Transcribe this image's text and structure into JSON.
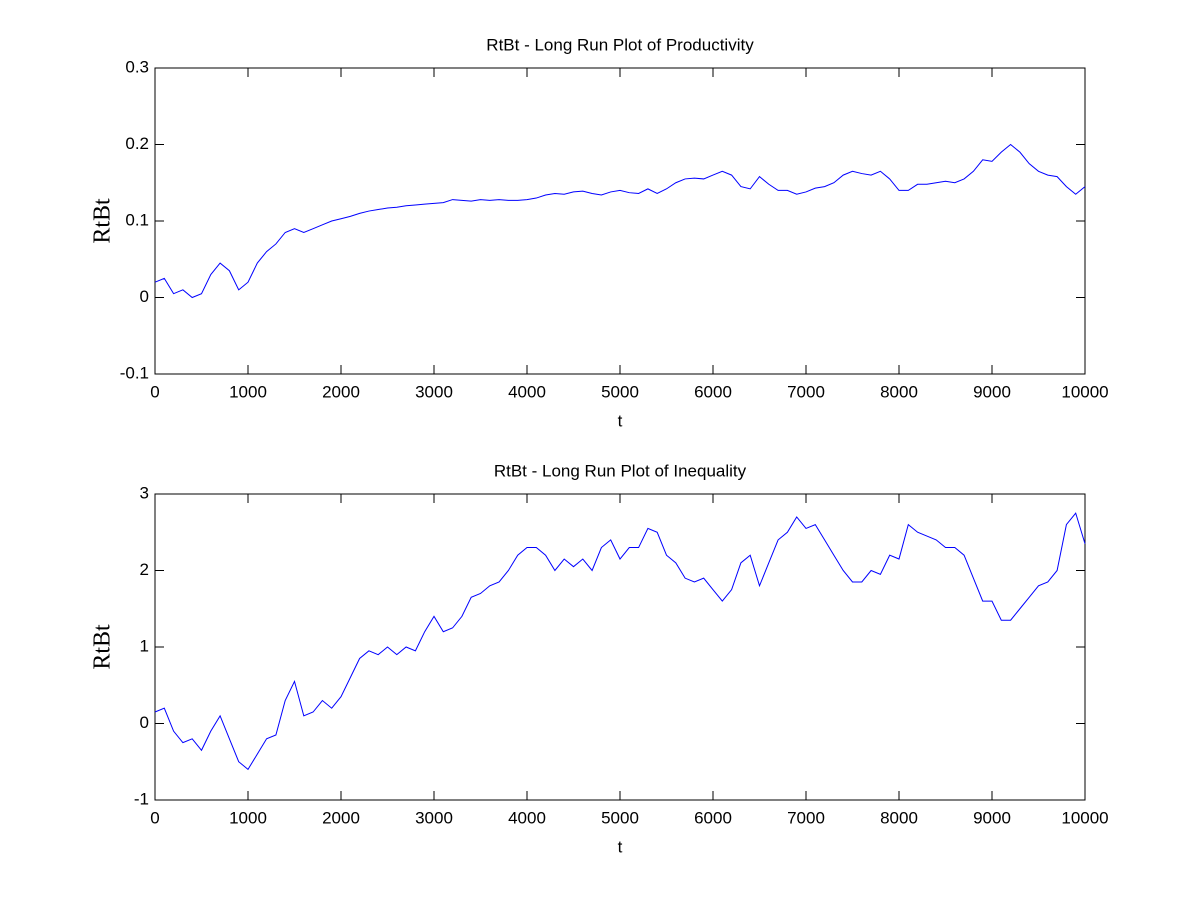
{
  "chart_data": [
    {
      "type": "line",
      "title": "RtBt - Long Run Plot of Productivity",
      "xlabel": "t",
      "ylabel": "RtBt",
      "color": "#0000ff",
      "xlim": [
        0,
        10000
      ],
      "xticks": [
        0,
        1000,
        2000,
        3000,
        4000,
        5000,
        6000,
        7000,
        8000,
        9000,
        10000
      ],
      "ylim": [
        -0.1,
        0.3
      ],
      "yticks": [
        -0.1,
        0,
        0.1,
        0.2,
        0.3
      ],
      "x": [
        0,
        100,
        200,
        300,
        400,
        500,
        600,
        700,
        800,
        900,
        1000,
        1100,
        1200,
        1300,
        1400,
        1500,
        1600,
        1700,
        1800,
        1900,
        2000,
        2100,
        2200,
        2300,
        2400,
        2500,
        2600,
        2700,
        2800,
        2900,
        3000,
        3100,
        3200,
        3300,
        3400,
        3500,
        3600,
        3700,
        3800,
        3900,
        4000,
        4100,
        4200,
        4300,
        4400,
        4500,
        4600,
        4700,
        4800,
        4900,
        5000,
        5100,
        5200,
        5300,
        5400,
        5500,
        5600,
        5700,
        5800,
        5900,
        6000,
        6100,
        6200,
        6300,
        6400,
        6500,
        6600,
        6700,
        6800,
        6900,
        7000,
        7100,
        7200,
        7300,
        7400,
        7500,
        7600,
        7700,
        7800,
        7900,
        8000,
        8100,
        8200,
        8300,
        8400,
        8500,
        8600,
        8700,
        8800,
        8900,
        9000,
        9100,
        9200,
        9300,
        9400,
        9500,
        9600,
        9700,
        9800,
        9900,
        10000
      ],
      "values": [
        0.02,
        0.025,
        0.005,
        0.01,
        0.0,
        0.005,
        0.03,
        0.045,
        0.035,
        0.01,
        0.02,
        0.045,
        0.06,
        0.07,
        0.085,
        0.09,
        0.085,
        0.09,
        0.095,
        0.1,
        0.103,
        0.106,
        0.11,
        0.113,
        0.115,
        0.117,
        0.118,
        0.12,
        0.121,
        0.122,
        0.123,
        0.124,
        0.128,
        0.127,
        0.126,
        0.128,
        0.127,
        0.128,
        0.127,
        0.127,
        0.128,
        0.13,
        0.134,
        0.136,
        0.135,
        0.138,
        0.139,
        0.136,
        0.134,
        0.138,
        0.14,
        0.137,
        0.136,
        0.142,
        0.136,
        0.142,
        0.15,
        0.155,
        0.156,
        0.155,
        0.16,
        0.165,
        0.16,
        0.145,
        0.142,
        0.158,
        0.148,
        0.14,
        0.14,
        0.135,
        0.138,
        0.143,
        0.145,
        0.15,
        0.16,
        0.165,
        0.162,
        0.16,
        0.165,
        0.155,
        0.14,
        0.14,
        0.148,
        0.148,
        0.15,
        0.152,
        0.15,
        0.155,
        0.165,
        0.18,
        0.178,
        0.19,
        0.2,
        0.19,
        0.175,
        0.165,
        0.16,
        0.158,
        0.145,
        0.135,
        0.145
      ]
    },
    {
      "type": "line",
      "title": "RtBt - Long Run Plot of Inequality",
      "xlabel": "t",
      "ylabel": "RtBt",
      "color": "#0000ff",
      "xlim": [
        0,
        10000
      ],
      "xticks": [
        0,
        1000,
        2000,
        3000,
        4000,
        5000,
        6000,
        7000,
        8000,
        9000,
        10000
      ],
      "ylim": [
        -1,
        3
      ],
      "yticks": [
        -1,
        0,
        1,
        2,
        3
      ],
      "x": [
        0,
        100,
        200,
        300,
        400,
        500,
        600,
        700,
        800,
        900,
        1000,
        1100,
        1200,
        1300,
        1400,
        1500,
        1600,
        1700,
        1800,
        1900,
        2000,
        2100,
        2200,
        2300,
        2400,
        2500,
        2600,
        2700,
        2800,
        2900,
        3000,
        3100,
        3200,
        3300,
        3400,
        3500,
        3600,
        3700,
        3800,
        3900,
        4000,
        4100,
        4200,
        4300,
        4400,
        4500,
        4600,
        4700,
        4800,
        4900,
        5000,
        5100,
        5200,
        5300,
        5400,
        5500,
        5600,
        5700,
        5800,
        5900,
        6000,
        6100,
        6200,
        6300,
        6400,
        6500,
        6600,
        6700,
        6800,
        6900,
        7000,
        7100,
        7200,
        7300,
        7400,
        7500,
        7600,
        7700,
        7800,
        7900,
        8000,
        8100,
        8200,
        8300,
        8400,
        8500,
        8600,
        8700,
        8800,
        8900,
        9000,
        9100,
        9200,
        9300,
        9400,
        9500,
        9600,
        9700,
        9800,
        9900,
        10000
      ],
      "values": [
        0.15,
        0.2,
        -0.1,
        -0.25,
        -0.2,
        -0.35,
        -0.1,
        0.1,
        -0.2,
        -0.5,
        -0.6,
        -0.4,
        -0.2,
        -0.15,
        0.3,
        0.55,
        0.1,
        0.15,
        0.3,
        0.2,
        0.35,
        0.6,
        0.85,
        0.95,
        0.9,
        1.0,
        0.9,
        1.0,
        0.95,
        1.2,
        1.4,
        1.2,
        1.25,
        1.4,
        1.65,
        1.7,
        1.8,
        1.85,
        2.0,
        2.2,
        2.3,
        2.3,
        2.2,
        2.0,
        2.15,
        2.05,
        2.15,
        2.0,
        2.3,
        2.4,
        2.15,
        2.3,
        2.3,
        2.55,
        2.5,
        2.2,
        2.1,
        1.9,
        1.85,
        1.9,
        1.75,
        1.6,
        1.75,
        2.1,
        2.2,
        1.8,
        2.1,
        2.4,
        2.5,
        2.7,
        2.55,
        2.6,
        2.4,
        2.2,
        2.0,
        1.85,
        1.85,
        2.0,
        1.95,
        2.2,
        2.15,
        2.6,
        2.5,
        2.45,
        2.4,
        2.3,
        2.3,
        2.2,
        1.9,
        1.6,
        1.6,
        1.35,
        1.35,
        1.5,
        1.65,
        1.8,
        1.85,
        2.0,
        2.6,
        2.75,
        2.35
      ]
    }
  ]
}
